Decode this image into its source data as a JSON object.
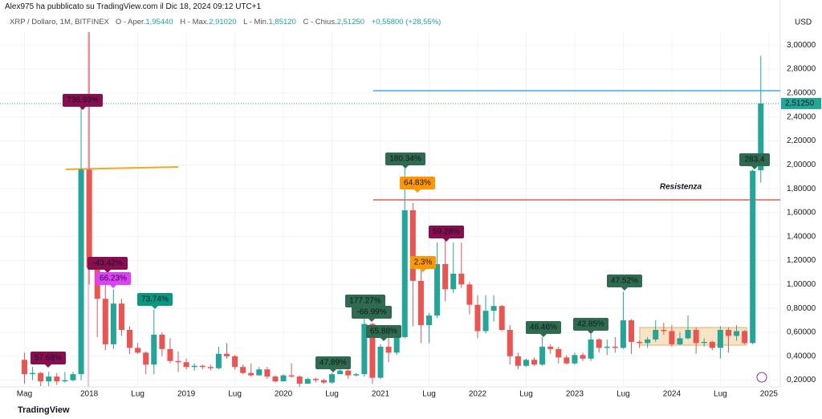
{
  "header": {
    "publisher": "Alex975 ha pubblicato su TradingView.com il Dic 18, 2024 09:12 UTC+1"
  },
  "footer": {
    "brand": "TradingView"
  },
  "chart_data": {
    "type": "candlestick",
    "symbol": "XRP / Dollaro, 1M, BITFINEX",
    "ohlc_labels": [
      "O - Aper.",
      "H - Max.",
      "L - Min.",
      "C - Chius."
    ],
    "ohlc_values": [
      "1,95440",
      "2,91020",
      "1,85120",
      "2,51250"
    ],
    "change": "+0,55800 (+28,55%)",
    "y_axis_label": "USD",
    "last_price_label": "2,51250",
    "resistance_label": "Resistenza",
    "up_color": "#22a69a",
    "down_color": "#ef5350",
    "x": [
      "2017-05",
      "2017-06",
      "2017-07",
      "2017-08",
      "2017-09",
      "2017-10",
      "2017-11",
      "2017-12",
      "2018-01",
      "2018-02",
      "2018-03",
      "2018-04",
      "2018-05",
      "2018-06",
      "2018-07",
      "2018-08",
      "2018-09",
      "2018-10",
      "2018-11",
      "2018-12",
      "2019-01",
      "2019-02",
      "2019-03",
      "2019-04",
      "2019-05",
      "2019-06",
      "2019-07",
      "2019-08",
      "2019-09",
      "2019-10",
      "2019-11",
      "2019-12",
      "2020-01",
      "2020-02",
      "2020-03",
      "2020-04",
      "2020-05",
      "2020-06",
      "2020-07",
      "2020-08",
      "2020-09",
      "2020-10",
      "2020-11",
      "2020-12",
      "2021-01",
      "2021-02",
      "2021-03",
      "2021-04",
      "2021-05",
      "2021-06",
      "2021-07",
      "2021-08",
      "2021-09",
      "2021-10",
      "2021-11",
      "2021-12",
      "2022-01",
      "2022-02",
      "2022-03",
      "2022-04",
      "2022-05",
      "2022-06",
      "2022-07",
      "2022-08",
      "2022-09",
      "2022-10",
      "2022-11",
      "2022-12",
      "2023-01",
      "2023-02",
      "2023-03",
      "2023-04",
      "2023-05",
      "2023-06",
      "2023-07",
      "2023-08",
      "2023-09",
      "2023-10",
      "2023-11",
      "2023-12",
      "2024-01",
      "2024-02",
      "2024-03",
      "2024-04",
      "2024-05",
      "2024-06",
      "2024-07",
      "2024-08",
      "2024-09",
      "2024-10",
      "2024-11",
      "2024-12"
    ],
    "open": [
      0.37,
      0.25,
      0.26,
      0.19,
      0.23,
      0.19,
      0.2,
      0.25,
      1.96,
      1.14,
      0.88,
      0.5,
      0.84,
      0.62,
      0.47,
      0.43,
      0.33,
      0.58,
      0.46,
      0.36,
      0.35,
      0.31,
      0.32,
      0.31,
      0.3,
      0.42,
      0.4,
      0.31,
      0.26,
      0.24,
      0.29,
      0.23,
      0.19,
      0.24,
      0.23,
      0.17,
      0.21,
      0.2,
      0.18,
      0.25,
      0.28,
      0.24,
      0.25,
      0.67,
      0.22,
      0.48,
      0.43,
      0.56,
      1.62,
      1.03,
      0.66,
      0.74,
      1.17,
      0.96,
      1.09,
      1.0,
      0.83,
      0.61,
      0.78,
      0.82,
      0.62,
      0.4,
      0.32,
      0.37,
      0.33,
      0.48,
      0.46,
      0.39,
      0.34,
      0.41,
      0.38,
      0.54,
      0.47,
      0.48,
      0.47,
      0.7,
      0.52,
      0.51,
      0.54,
      0.62,
      0.61,
      0.5,
      0.55,
      0.62,
      0.51,
      0.52,
      0.47,
      0.62,
      0.57,
      0.61,
      0.51,
      1.9544
    ],
    "high": [
      0.43,
      0.31,
      0.27,
      0.27,
      0.26,
      0.27,
      0.27,
      2.5,
      3.3,
      1.22,
      1.0,
      0.96,
      0.88,
      0.65,
      0.51,
      0.44,
      0.79,
      0.6,
      0.55,
      0.44,
      0.38,
      0.34,
      0.33,
      0.33,
      0.48,
      0.51,
      0.41,
      0.33,
      0.34,
      0.31,
      0.31,
      0.24,
      0.25,
      0.34,
      0.24,
      0.22,
      0.22,
      0.21,
      0.26,
      0.33,
      0.29,
      0.26,
      0.78,
      0.68,
      0.5,
      0.65,
      0.65,
      1.97,
      1.68,
      1.12,
      0.76,
      1.35,
      1.41,
      1.35,
      1.35,
      1.02,
      0.91,
      0.91,
      0.91,
      0.83,
      0.66,
      0.43,
      0.38,
      0.39,
      0.56,
      0.5,
      0.48,
      0.41,
      0.43,
      0.43,
      0.59,
      0.55,
      0.54,
      0.56,
      0.94,
      0.71,
      0.53,
      0.56,
      0.7,
      0.68,
      0.66,
      0.6,
      0.74,
      0.64,
      0.55,
      0.53,
      0.65,
      0.64,
      0.66,
      0.62,
      1.96,
      2.9102
    ],
    "low": [
      0.17,
      0.2,
      0.15,
      0.15,
      0.16,
      0.18,
      0.19,
      0.2,
      1.0,
      0.56,
      0.45,
      0.46,
      0.57,
      0.42,
      0.42,
      0.25,
      0.25,
      0.4,
      0.34,
      0.27,
      0.29,
      0.28,
      0.29,
      0.28,
      0.29,
      0.38,
      0.29,
      0.25,
      0.23,
      0.24,
      0.21,
      0.18,
      0.19,
      0.22,
      0.11,
      0.17,
      0.18,
      0.17,
      0.17,
      0.25,
      0.21,
      0.23,
      0.23,
      0.17,
      0.21,
      0.35,
      0.41,
      0.55,
      0.65,
      0.51,
      0.51,
      0.72,
      0.86,
      0.93,
      0.97,
      0.75,
      0.55,
      0.59,
      0.69,
      0.61,
      0.33,
      0.29,
      0.31,
      0.32,
      0.32,
      0.42,
      0.34,
      0.33,
      0.33,
      0.36,
      0.36,
      0.43,
      0.41,
      0.43,
      0.46,
      0.42,
      0.47,
      0.47,
      0.52,
      0.58,
      0.48,
      0.49,
      0.54,
      0.42,
      0.48,
      0.45,
      0.38,
      0.43,
      0.53,
      0.5,
      0.5,
      1.8512
    ],
    "close": [
      0.25,
      0.26,
      0.19,
      0.23,
      0.19,
      0.2,
      0.25,
      1.96,
      1.14,
      0.88,
      0.5,
      0.84,
      0.62,
      0.47,
      0.43,
      0.33,
      0.58,
      0.46,
      0.36,
      0.35,
      0.31,
      0.32,
      0.31,
      0.3,
      0.42,
      0.4,
      0.31,
      0.26,
      0.24,
      0.29,
      0.23,
      0.19,
      0.24,
      0.23,
      0.17,
      0.21,
      0.2,
      0.18,
      0.25,
      0.28,
      0.24,
      0.25,
      0.67,
      0.22,
      0.48,
      0.43,
      0.56,
      1.62,
      1.03,
      0.66,
      0.74,
      1.17,
      0.96,
      1.09,
      1.0,
      0.83,
      0.61,
      0.78,
      0.82,
      0.62,
      0.4,
      0.32,
      0.37,
      0.33,
      0.48,
      0.46,
      0.39,
      0.34,
      0.41,
      0.38,
      0.54,
      0.47,
      0.48,
      0.47,
      0.7,
      0.52,
      0.51,
      0.54,
      0.62,
      0.61,
      0.5,
      0.55,
      0.62,
      0.51,
      0.52,
      0.47,
      0.62,
      0.57,
      0.61,
      0.51,
      1.95,
      2.5125
    ],
    "ylim": [
      0.09,
      3.23
    ],
    "yticks": [
      {
        "value": 0.2,
        "label": "0,20000"
      },
      {
        "value": 0.4,
        "label": "0,40000"
      },
      {
        "value": 0.6,
        "label": "0,60000"
      },
      {
        "value": 0.8,
        "label": "0,80000"
      },
      {
        "value": 1.0,
        "label": "1,00000"
      },
      {
        "value": 1.2,
        "label": "1,20000"
      },
      {
        "value": 1.4,
        "label": "1,40000"
      },
      {
        "value": 1.6,
        "label": "1,60000"
      },
      {
        "value": 1.8,
        "label": "1,80000"
      },
      {
        "value": 2.0,
        "label": "2,00000"
      },
      {
        "value": 2.2,
        "label": "2,20000"
      },
      {
        "value": 2.4,
        "label": "2,40000"
      },
      {
        "value": 2.6,
        "label": "2,60000"
      },
      {
        "value": 2.8,
        "label": "2,80000"
      },
      {
        "value": 3.0,
        "label": "3,00000"
      }
    ],
    "xticks": [
      {
        "value": "2017-05",
        "label": "Mag"
      },
      {
        "value": "2018-01",
        "label": "2018"
      },
      {
        "value": "2018-07",
        "label": "Lug"
      },
      {
        "value": "2019-01",
        "label": "2019"
      },
      {
        "value": "2019-07",
        "label": "Lug"
      },
      {
        "value": "2020-01",
        "label": "2020"
      },
      {
        "value": "2020-07",
        "label": "Lug"
      },
      {
        "value": "2021-01",
        "label": "2021"
      },
      {
        "value": "2021-07",
        "label": "Lug"
      },
      {
        "value": "2022-01",
        "label": "2022"
      },
      {
        "value": "2022-07",
        "label": "Lug"
      },
      {
        "value": "2023-01",
        "label": "2023"
      },
      {
        "value": "2023-07",
        "label": "Lug"
      },
      {
        "value": "2024-01",
        "label": "2024"
      },
      {
        "value": "2024-07",
        "label": "Lug"
      },
      {
        "value": "2025-01",
        "label": "2025"
      }
    ],
    "grid": true,
    "annotations": [
      {
        "text": "736.93%",
        "color": "#880e4f"
      },
      {
        "text": "57.68%",
        "color": "#880e4f"
      },
      {
        "text": "-43.42%",
        "color": "#880e4f"
      },
      {
        "text": "66.23%",
        "color": "#e040fb"
      },
      {
        "text": "73.74%",
        "color": "#089981"
      },
      {
        "text": "47.89%",
        "color": "#2e6b4f"
      },
      {
        "text": "177.27%",
        "color": "#2e6b4f"
      },
      {
        "text": "-66.99%",
        "color": "#2e6b4f"
      },
      {
        "text": "65.88%",
        "color": "#2e6b4f"
      },
      {
        "text": "180.34%",
        "color": "#2e6b4f"
      },
      {
        "text": "64.83%",
        "color": "#ff9800"
      },
      {
        "text": "2.3%",
        "color": "#ff9800"
      },
      {
        "text": "59.28%",
        "color": "#880e4f"
      },
      {
        "text": "46.46%",
        "color": "#2e6b4f"
      },
      {
        "text": "42.85%",
        "color": "#2e6b4f"
      },
      {
        "text": "47.52%",
        "color": "#2e6b4f"
      },
      {
        "text": "283.4",
        "color": "#2e6b4f"
      }
    ]
  }
}
